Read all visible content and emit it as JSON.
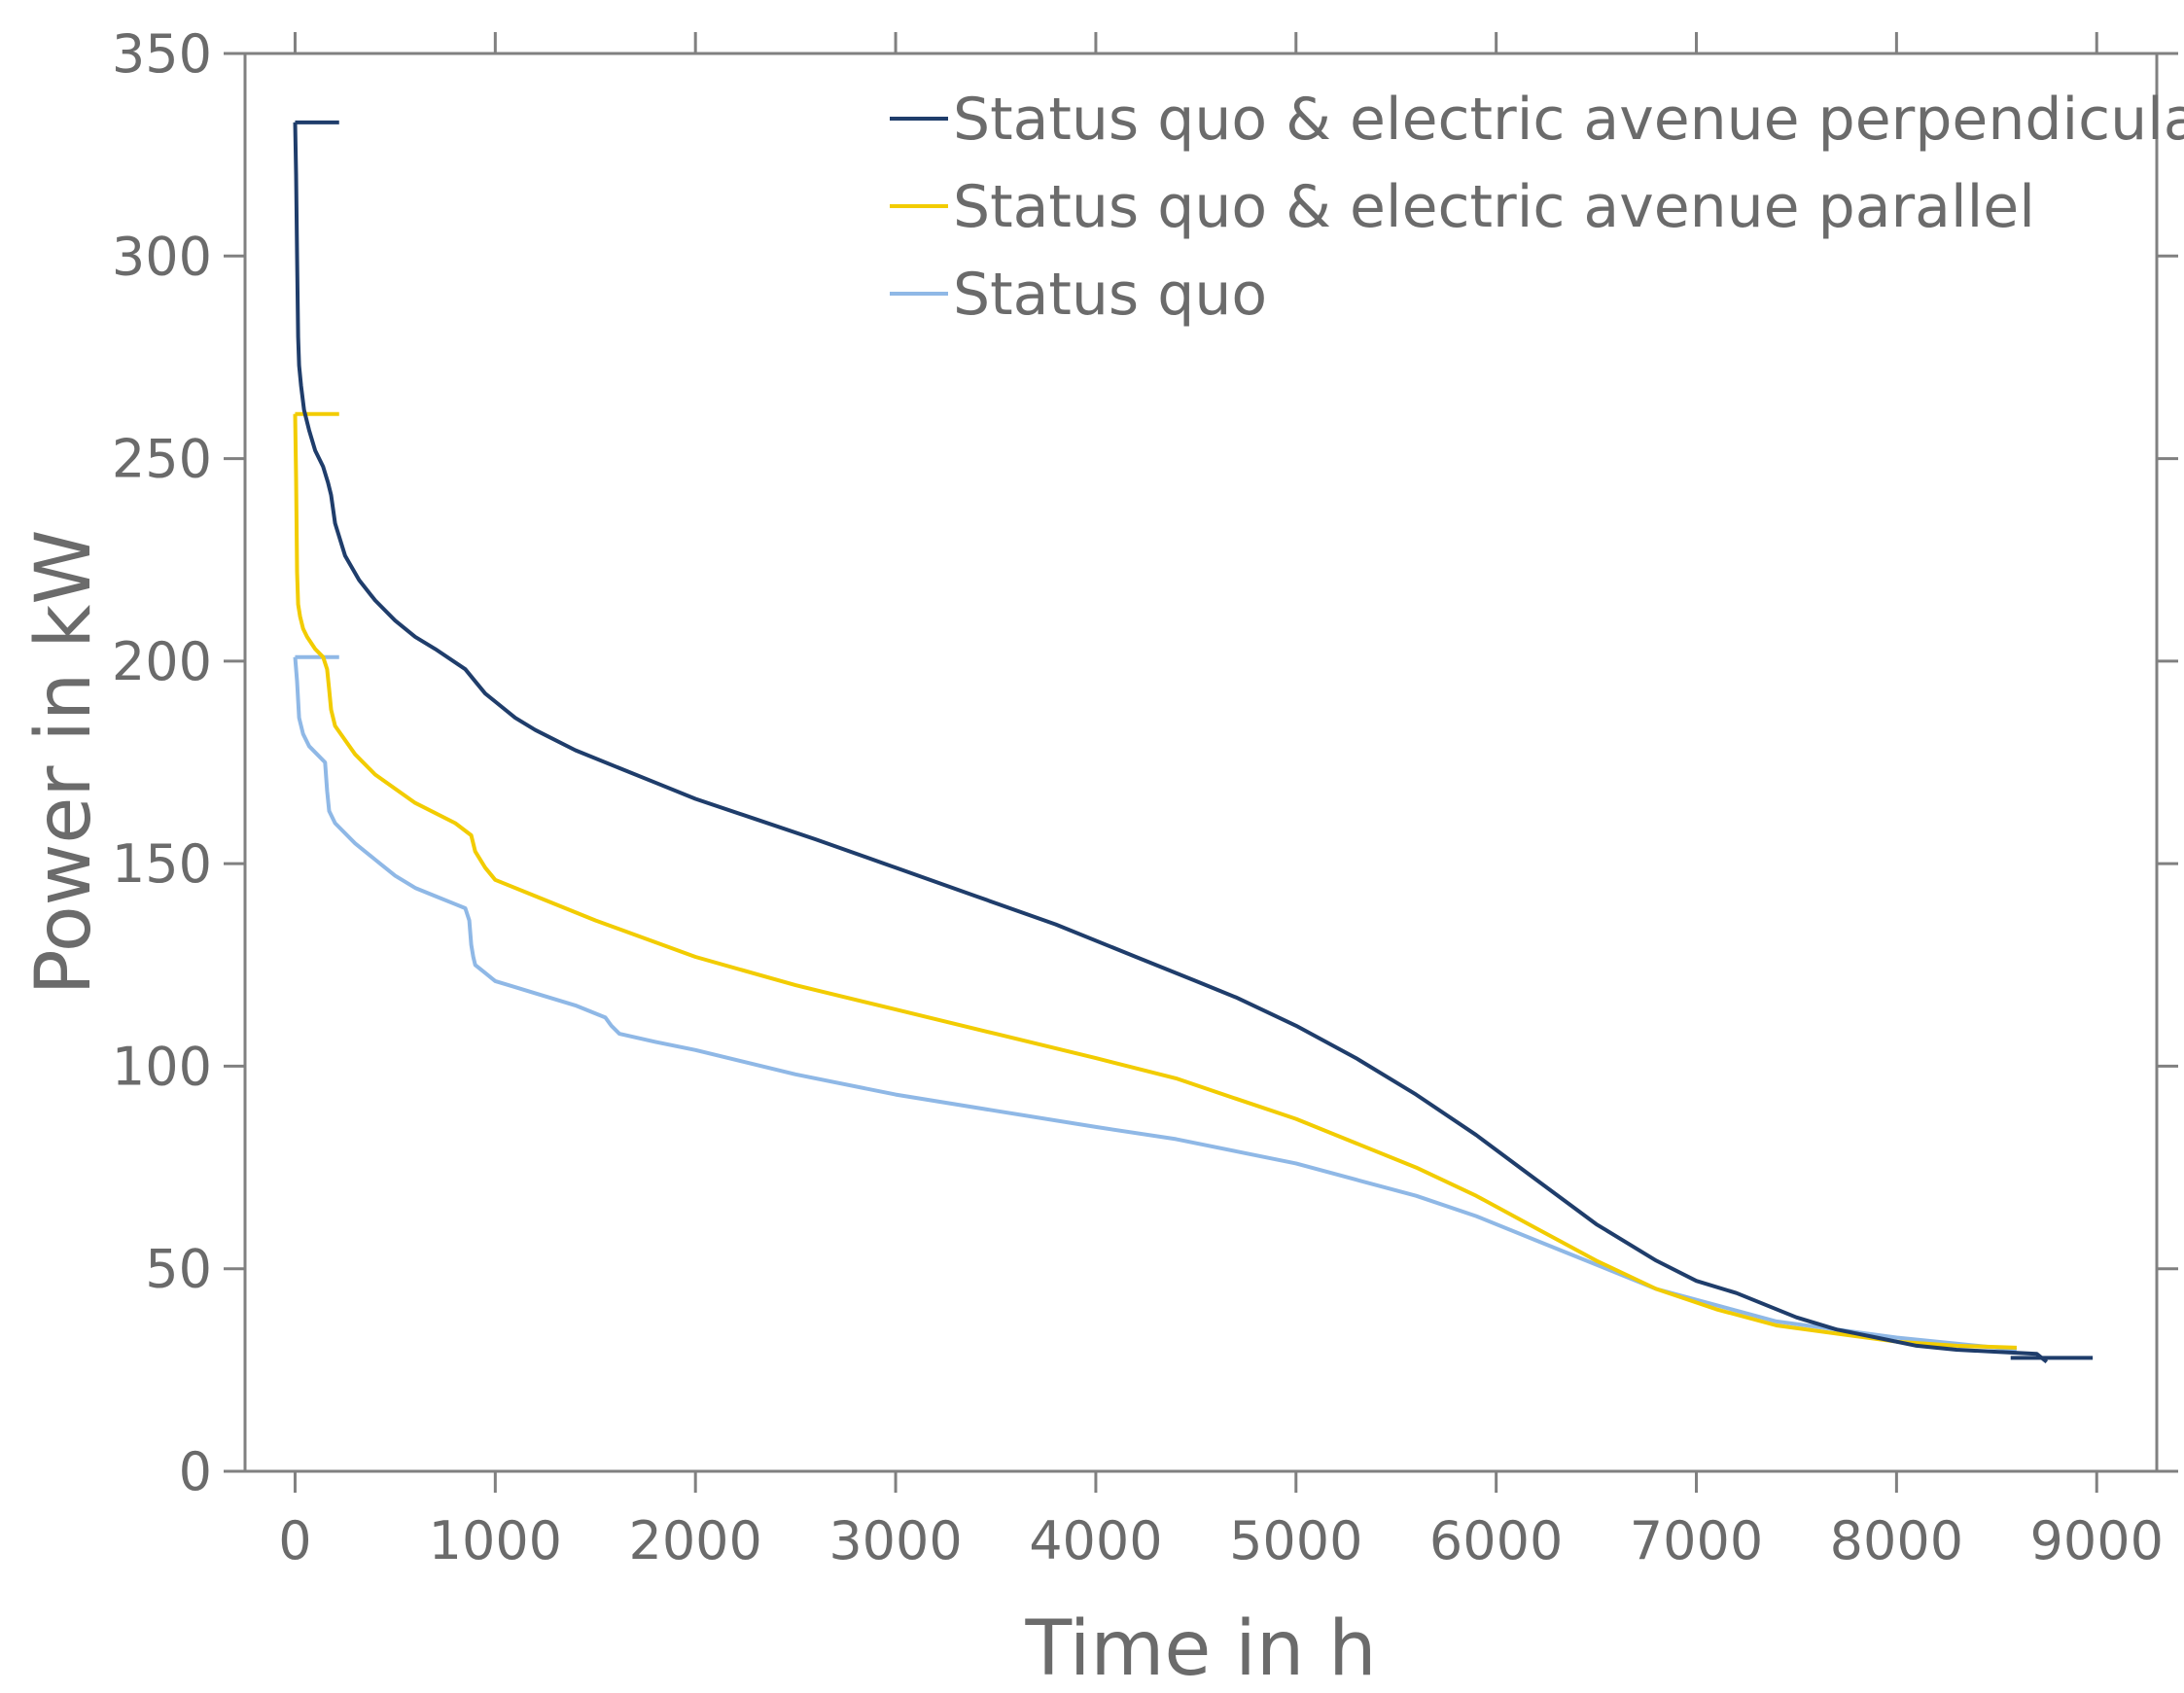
{
  "chart_data": {
    "type": "line",
    "xlabel": "Time in h",
    "ylabel": "Power in kW",
    "xlim": [
      -250,
      9300
    ],
    "ylim": [
      0,
      350
    ],
    "x_ticks": [
      0,
      1000,
      2000,
      3000,
      4000,
      5000,
      6000,
      7000,
      8000,
      9000
    ],
    "y_ticks": [
      0,
      50,
      100,
      150,
      200,
      250,
      300,
      350
    ],
    "grid": false,
    "legend_position": "top-right",
    "series": [
      {
        "name": "Status quo & electric avenue perpendicular",
        "color": "#1f3d6b",
        "cap_start": {
          "x": [
            0,
            220
          ],
          "y": 333
        },
        "cap_end": {
          "x": [
            8570,
            8980
          ],
          "y": 28
        },
        "x": [
          0,
          5,
          10,
          15,
          20,
          30,
          45,
          70,
          100,
          140,
          165,
          180,
          200,
          250,
          320,
          400,
          500,
          600,
          700,
          850,
          900,
          950,
          1000,
          1100,
          1200,
          1400,
          1600,
          1800,
          2000,
          2300,
          2600,
          3000,
          3400,
          3800,
          4200,
          4500,
          4700,
          5000,
          5300,
          5600,
          5900,
          6200,
          6500,
          6800,
          7000,
          7200,
          7500,
          7700,
          7900,
          8100,
          8300,
          8500,
          8700,
          8750
        ],
        "y": [
          333,
          320,
          300,
          280,
          273,
          268,
          262,
          257,
          252,
          248,
          244,
          241,
          234,
          226,
          220,
          215,
          210,
          206,
          203,
          198,
          195,
          192,
          190,
          186,
          183,
          178,
          174,
          170,
          166,
          161,
          156,
          149,
          142,
          135,
          127,
          121,
          117,
          110,
          102,
          93,
          83,
          72,
          61,
          52,
          47,
          44,
          38,
          35,
          33,
          31,
          30,
          29.5,
          29,
          27
        ]
      },
      {
        "name": "Status quo & electric avenue parallel",
        "color": "#f2cc00",
        "cap_start": {
          "x": [
            0,
            220
          ],
          "y": 261
        },
        "x": [
          0,
          5,
          10,
          15,
          25,
          40,
          60,
          100,
          140,
          160,
          170,
          180,
          200,
          300,
          400,
          600,
          800,
          880,
          900,
          950,
          1000,
          1200,
          1500,
          2000,
          2500,
          3000,
          3500,
          4000,
          4400,
          4700,
          5000,
          5300,
          5600,
          5900,
          6200,
          6500,
          6800,
          7100,
          7400,
          7700,
          8000,
          8300,
          8600
        ],
        "y": [
          261,
          245,
          222,
          214,
          211,
          208,
          206,
          203,
          201,
          198,
          193,
          188,
          184,
          177,
          172,
          165,
          160,
          157,
          153,
          149,
          146,
          142,
          136,
          127,
          120,
          114,
          108,
          102,
          97,
          92,
          87,
          81,
          75,
          68,
          60,
          52,
          45,
          40,
          36,
          34,
          32,
          31,
          30.5
        ]
      },
      {
        "name": "Status quo",
        "color": "#8fb8e6",
        "cap_start": {
          "x": [
            0,
            220
          ],
          "y": 201
        },
        "x": [
          0,
          10,
          20,
          40,
          70,
          110,
          150,
          160,
          170,
          200,
          300,
          400,
          500,
          600,
          700,
          800,
          850,
          870,
          880,
          890,
          900,
          950,
          1000,
          1200,
          1400,
          1550,
          1580,
          1620,
          1800,
          2000,
          2500,
          3000,
          3500,
          4000,
          4400,
          4700,
          5000,
          5300,
          5600,
          5900,
          6200,
          6500,
          6800,
          7100,
          7400,
          7700,
          8000,
          8300,
          8600
        ],
        "y": [
          201,
          195,
          186,
          182,
          179,
          177,
          175,
          168,
          163,
          160,
          155,
          151,
          147,
          144,
          142,
          140,
          139,
          136,
          130,
          127,
          125,
          123,
          121,
          118,
          115,
          112,
          110,
          108,
          106,
          104,
          98,
          93,
          89,
          85,
          82,
          79,
          76,
          72,
          68,
          63,
          57,
          51,
          45,
          41,
          37,
          35,
          33,
          31.5,
          30
        ]
      }
    ]
  }
}
